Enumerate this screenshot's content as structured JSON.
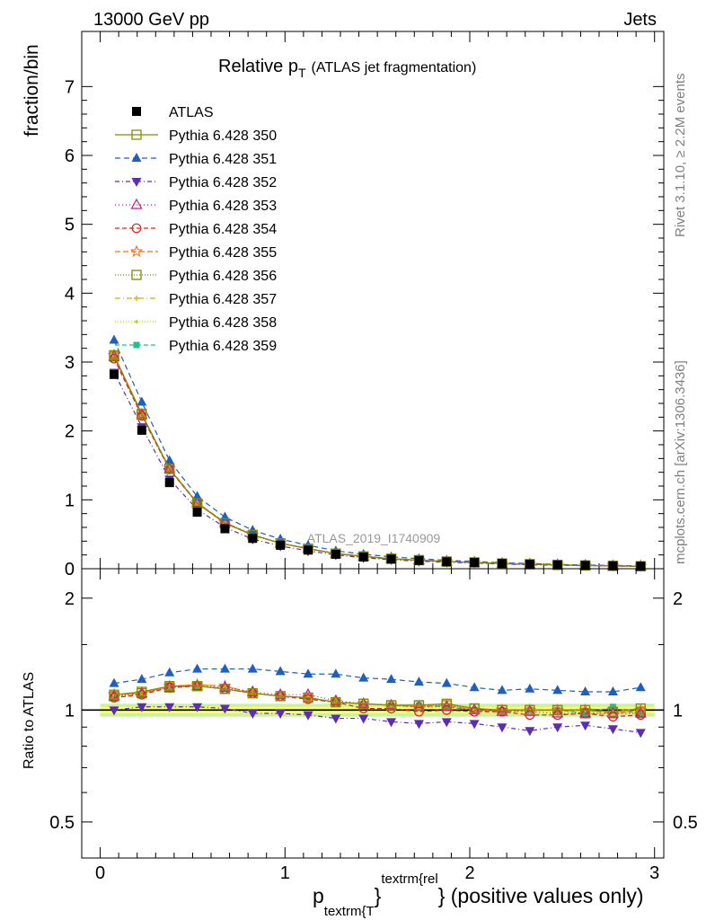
{
  "header": {
    "left": "13000 GeV pp",
    "right": "Jets"
  },
  "side_labels": {
    "rivet": "Rivet 3.1.10, ≥ 2.2M events",
    "mcplots": "mcplots.cern.ch [arXiv:1306.3436]"
  },
  "colors": {
    "band_inner": "#ffff66",
    "band_outer": "#ccf29a",
    "frame": "#000000"
  },
  "chart_data": [
    {
      "panel": "main",
      "type": "scatter",
      "title": "Relative p",
      "title_sub": "T",
      "title_suffix": "(ATLAS jet fragmentation)",
      "ylabel": "fraction/bin",
      "watermark": "ATLAS_2019_I1740909",
      "xlim": [
        -0.1,
        3.05
      ],
      "ylim": [
        0,
        7.8
      ],
      "yticks": [
        0,
        1,
        2,
        3,
        4,
        5,
        6,
        7
      ],
      "ytick_labels": [
        "0",
        "1",
        "2",
        "3",
        "4",
        "5",
        "6",
        "7"
      ],
      "x": [
        0.075,
        0.225,
        0.375,
        0.525,
        0.675,
        0.825,
        0.975,
        1.125,
        1.275,
        1.425,
        1.575,
        1.725,
        1.875,
        2.025,
        2.175,
        2.325,
        2.475,
        2.625,
        2.775,
        2.925
      ],
      "series": [
        {
          "name": "ATLAS",
          "color": "#000000",
          "marker": "square-filled",
          "dash": "none",
          "values": [
            2.82,
            2.01,
            1.25,
            0.82,
            0.58,
            0.44,
            0.34,
            0.27,
            0.21,
            0.17,
            0.14,
            0.12,
            0.1,
            0.09,
            0.075,
            0.065,
            0.055,
            0.048,
            0.042,
            0.037
          ]
        },
        {
          "name": "Pythia 6.428 350",
          "color": "#8b8b00",
          "marker": "square-open",
          "dash": "solid",
          "values": [
            3.1,
            2.25,
            1.45,
            0.95,
            0.66,
            0.49,
            0.37,
            0.29,
            0.22,
            0.18,
            0.145,
            0.125,
            0.105,
            0.092,
            0.077,
            0.066,
            0.056,
            0.048,
            0.042,
            0.037
          ]
        },
        {
          "name": "Pythia 6.428 351",
          "color": "#1f5fbf",
          "marker": "triangle-up-filled",
          "dash": "6,4",
          "values": [
            3.32,
            2.42,
            1.57,
            1.05,
            0.75,
            0.56,
            0.43,
            0.34,
            0.26,
            0.21,
            0.172,
            0.145,
            0.121,
            0.105,
            0.087,
            0.076,
            0.063,
            0.054,
            0.048,
            0.042
          ]
        },
        {
          "name": "Pythia 6.428 352",
          "color": "#5b2db3",
          "marker": "triangle-down-filled",
          "dash": "5,3,1,3",
          "values": [
            2.85,
            2.06,
            1.3,
            0.86,
            0.6,
            0.43,
            0.33,
            0.26,
            0.2,
            0.16,
            0.13,
            0.11,
            0.093,
            0.083,
            0.068,
            0.058,
            0.05,
            0.044,
            0.038,
            0.033
          ]
        },
        {
          "name": "Pythia 6.428 353",
          "color": "#c41a8a",
          "marker": "triangle-up-open",
          "dash": "1,3",
          "values": [
            3.08,
            2.24,
            1.45,
            0.95,
            0.67,
            0.5,
            0.37,
            0.3,
            0.22,
            0.18,
            0.145,
            0.124,
            0.104,
            0.091,
            0.076,
            0.065,
            0.055,
            0.047,
            0.041,
            0.036
          ]
        },
        {
          "name": "Pythia 6.428 354",
          "color": "#e02020",
          "marker": "circle-open",
          "dash": "5,3",
          "values": [
            3.05,
            2.22,
            1.44,
            0.95,
            0.66,
            0.49,
            0.37,
            0.29,
            0.22,
            0.17,
            0.142,
            0.122,
            0.103,
            0.09,
            0.075,
            0.064,
            0.054,
            0.047,
            0.04,
            0.036
          ]
        },
        {
          "name": "Pythia 6.428 355",
          "color": "#f07020",
          "marker": "star-open",
          "dash": "6,3",
          "values": [
            3.1,
            2.24,
            1.46,
            0.96,
            0.67,
            0.49,
            0.37,
            0.29,
            0.22,
            0.18,
            0.144,
            0.123,
            0.104,
            0.091,
            0.076,
            0.065,
            0.055,
            0.048,
            0.041,
            0.037
          ]
        },
        {
          "name": "Pythia 6.428 356",
          "color": "#7a8a00",
          "marker": "square-open",
          "dash": "1,2",
          "values": [
            3.08,
            2.23,
            1.45,
            0.95,
            0.66,
            0.49,
            0.37,
            0.29,
            0.22,
            0.18,
            0.145,
            0.124,
            0.104,
            0.091,
            0.076,
            0.065,
            0.055,
            0.047,
            0.041,
            0.036
          ]
        },
        {
          "name": "Pythia 6.428 357",
          "color": "#d4b400",
          "marker": "cross",
          "dash": "6,3,1,3",
          "values": [
            3.09,
            2.24,
            1.45,
            0.96,
            0.67,
            0.49,
            0.37,
            0.29,
            0.22,
            0.18,
            0.144,
            0.123,
            0.104,
            0.091,
            0.076,
            0.065,
            0.055,
            0.048,
            0.041,
            0.037
          ]
        },
        {
          "name": "Pythia 6.428 358",
          "color": "#b8d400",
          "marker": "dot",
          "dash": "1,2",
          "values": [
            3.1,
            2.23,
            1.45,
            0.95,
            0.67,
            0.49,
            0.37,
            0.29,
            0.22,
            0.18,
            0.145,
            0.124,
            0.104,
            0.091,
            0.076,
            0.065,
            0.055,
            0.048,
            0.041,
            0.037
          ]
        },
        {
          "name": "Pythia 6.428 359",
          "color": "#20c090",
          "marker": "square-small-filled",
          "dash": "5,3",
          "values": [
            3.06,
            2.22,
            1.44,
            0.95,
            0.66,
            0.49,
            0.37,
            0.29,
            0.22,
            0.18,
            0.144,
            0.123,
            0.103,
            0.09,
            0.075,
            0.065,
            0.055,
            0.047,
            0.043,
            0.036
          ]
        }
      ]
    },
    {
      "panel": "ratio",
      "type": "scatter",
      "ylabel": "Ratio to ATLAS",
      "xlabel": "p",
      "xlabel_sub": "textrm{T",
      "xlabel_sup": "textrm{rel",
      "xlabel_suffix": "} (positive values only)",
      "xlabel_brace": "}",
      "xlim": [
        -0.1,
        3.05
      ],
      "ylim": [
        0.4,
        2.4
      ],
      "log_y": true,
      "xticks": [
        0,
        1,
        2,
        3
      ],
      "xtick_labels": [
        "0",
        "1",
        "2",
        "3"
      ],
      "yticks": [
        0.5,
        1,
        2
      ],
      "ytick_labels": [
        "0.5",
        "1",
        "2"
      ],
      "band": {
        "inner": 0.02,
        "outer": 0.04
      },
      "reference_line": 1,
      "x": [
        0.075,
        0.225,
        0.375,
        0.525,
        0.675,
        0.825,
        0.975,
        1.125,
        1.275,
        1.425,
        1.575,
        1.725,
        1.875,
        2.025,
        2.175,
        2.325,
        2.475,
        2.625,
        2.775,
        2.925
      ],
      "series": [
        {
          "name": "Pythia 6.428 350",
          "values": [
            1.1,
            1.12,
            1.16,
            1.16,
            1.14,
            1.11,
            1.09,
            1.08,
            1.05,
            1.04,
            1.03,
            1.03,
            1.04,
            1.01,
            1.0,
            1.0,
            1.0,
            1.0,
            0.99,
            1.01
          ]
        },
        {
          "name": "Pythia 6.428 351",
          "values": [
            1.18,
            1.21,
            1.26,
            1.29,
            1.29,
            1.29,
            1.27,
            1.25,
            1.25,
            1.22,
            1.21,
            1.19,
            1.18,
            1.15,
            1.13,
            1.14,
            1.13,
            1.12,
            1.12,
            1.15
          ]
        },
        {
          "name": "Pythia 6.428 352",
          "values": [
            1.0,
            1.02,
            1.02,
            1.02,
            1.01,
            0.98,
            0.98,
            0.97,
            0.95,
            0.95,
            0.93,
            0.92,
            0.93,
            0.92,
            0.9,
            0.88,
            0.9,
            0.91,
            0.89,
            0.87
          ]
        },
        {
          "name": "Pythia 6.428 353",
          "values": [
            1.09,
            1.11,
            1.15,
            1.16,
            1.15,
            1.12,
            1.1,
            1.1,
            1.06,
            1.04,
            1.03,
            1.02,
            1.02,
            1.0,
            0.99,
            0.99,
            0.98,
            0.98,
            0.98,
            0.98
          ]
        },
        {
          "name": "Pythia 6.428 354",
          "values": [
            1.08,
            1.1,
            1.15,
            1.16,
            1.14,
            1.11,
            1.09,
            1.07,
            1.05,
            1.01,
            1.01,
            0.99,
            1.0,
            0.99,
            0.99,
            0.97,
            0.97,
            0.98,
            0.96,
            0.97
          ]
        },
        {
          "name": "Pythia 6.428 355",
          "values": [
            1.1,
            1.11,
            1.16,
            1.17,
            1.16,
            1.11,
            1.09,
            1.08,
            1.05,
            1.04,
            1.03,
            1.02,
            1.03,
            1.0,
            1.0,
            1.0,
            1.0,
            1.0,
            0.98,
            1.0
          ]
        },
        {
          "name": "Pythia 6.428 356",
          "values": [
            1.09,
            1.11,
            1.15,
            1.16,
            1.14,
            1.11,
            1.09,
            1.08,
            1.05,
            1.04,
            1.03,
            1.03,
            1.03,
            1.01,
            1.0,
            1.0,
            1.0,
            0.98,
            0.98,
            0.99
          ]
        },
        {
          "name": "Pythia 6.428 357",
          "values": [
            1.1,
            1.11,
            1.16,
            1.17,
            1.16,
            1.11,
            1.09,
            1.08,
            1.05,
            1.04,
            1.03,
            1.02,
            1.03,
            1.0,
            1.0,
            1.0,
            1.0,
            1.0,
            0.99,
            1.0
          ]
        },
        {
          "name": "Pythia 6.428 358",
          "values": [
            1.1,
            1.11,
            1.16,
            1.16,
            1.15,
            1.11,
            1.09,
            1.08,
            1.05,
            1.04,
            1.03,
            1.03,
            1.04,
            1.01,
            1.0,
            1.0,
            1.0,
            1.0,
            0.99,
            1.0
          ]
        },
        {
          "name": "Pythia 6.428 359",
          "values": [
            1.08,
            1.1,
            1.15,
            1.16,
            1.14,
            1.11,
            1.09,
            1.07,
            1.05,
            1.04,
            1.03,
            1.03,
            1.02,
            1.0,
            0.99,
            1.0,
            1.0,
            0.98,
            1.02,
            0.97
          ]
        }
      ]
    }
  ]
}
